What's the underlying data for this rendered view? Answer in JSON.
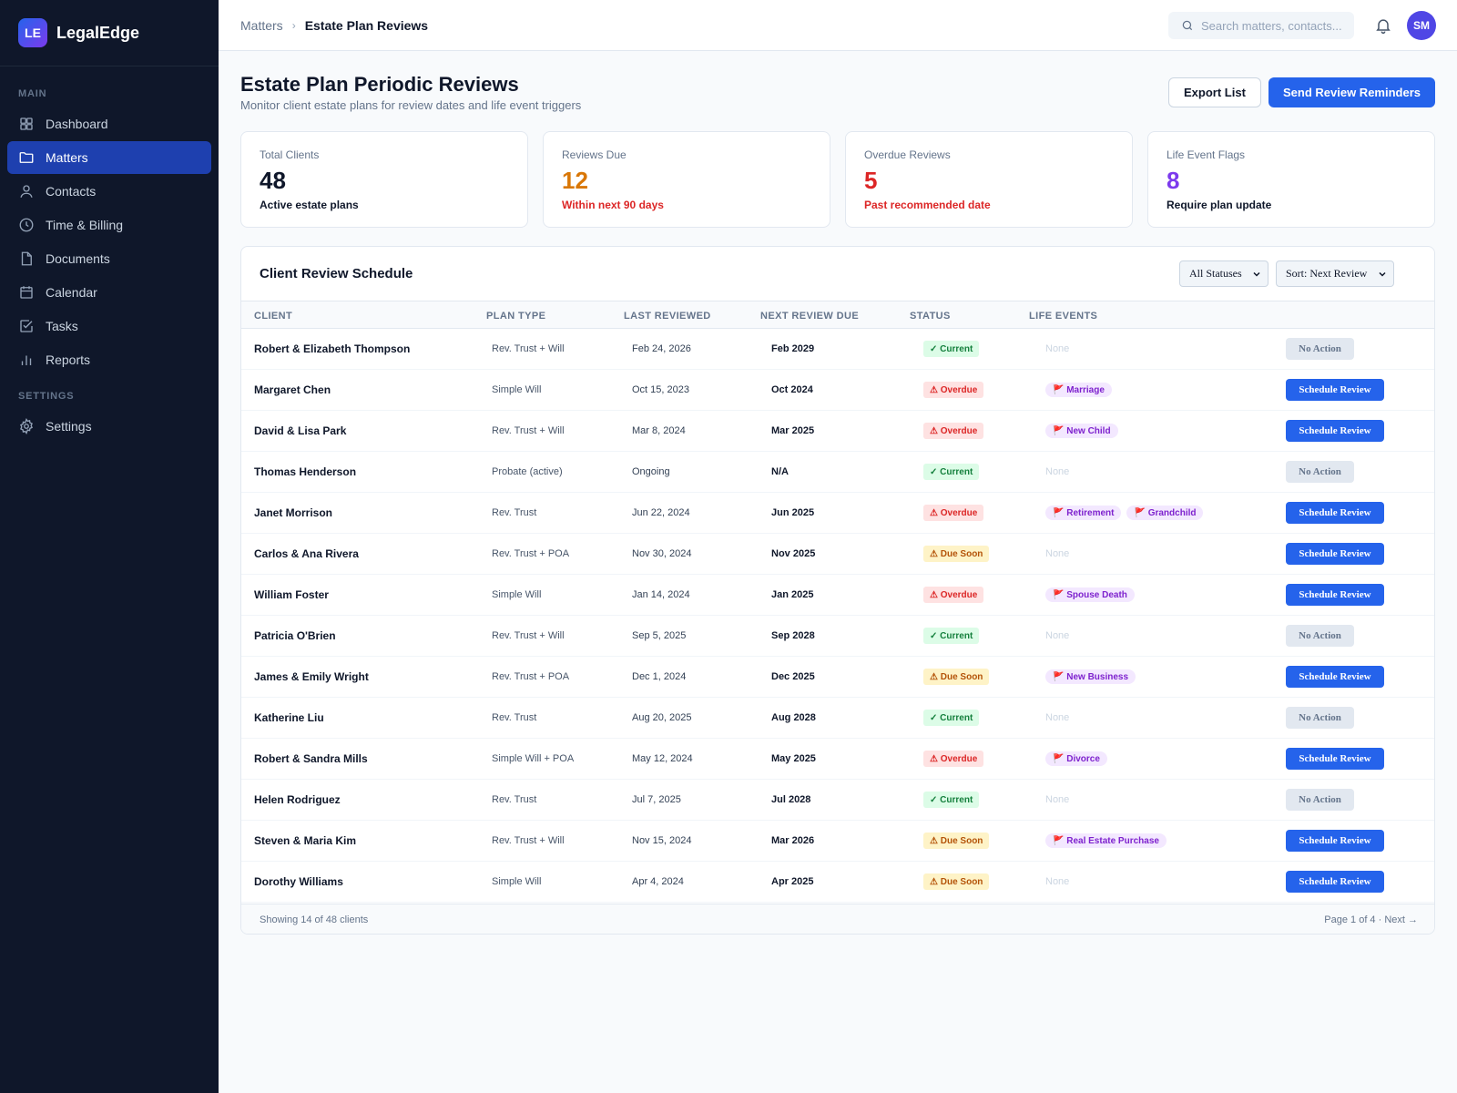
{
  "brand": {
    "logo_text": "LE",
    "name": "LegalEdge"
  },
  "sidebar": {
    "section_main": "MAIN",
    "section_settings": "SETTINGS",
    "items": [
      {
        "label": "Dashboard",
        "icon": "grid-icon"
      },
      {
        "label": "Matters",
        "icon": "folder-icon",
        "active": true
      },
      {
        "label": "Contacts",
        "icon": "user-icon"
      },
      {
        "label": "Time & Billing",
        "icon": "clock-icon"
      },
      {
        "label": "Documents",
        "icon": "document-icon"
      },
      {
        "label": "Calendar",
        "icon": "calendar-icon"
      },
      {
        "label": "Tasks",
        "icon": "checkbox-icon"
      },
      {
        "label": "Reports",
        "icon": "bar-chart-icon"
      }
    ],
    "settings_item": {
      "label": "Settings",
      "icon": "gear-icon"
    }
  },
  "topbar": {
    "breadcrumb": {
      "parent": "Matters",
      "current": "Estate Plan Reviews"
    },
    "search_placeholder": "Search matters, contacts...",
    "avatar_initials": "SM"
  },
  "page": {
    "title": "Estate Plan Periodic Reviews",
    "subtitle": "Monitor client estate plans for review dates and life event triggers",
    "export_label": "Export List",
    "remind_label": "Send Review Reminders"
  },
  "stats": [
    {
      "label": "Total Clients",
      "value": "48",
      "note": "Active estate plans",
      "value_color": "#0f172a",
      "note_color": "#0f172a"
    },
    {
      "label": "Reviews Due",
      "value": "12",
      "note": "Within next 90 days",
      "value_color": "#d97706",
      "note_color": "#dc2626"
    },
    {
      "label": "Overdue Reviews",
      "value": "5",
      "note": "Past recommended date",
      "value_color": "#dc2626",
      "note_color": "#dc2626"
    },
    {
      "label": "Life Event Flags",
      "value": "8",
      "note": "Require plan update",
      "value_color": "#7c3aed",
      "note_color": "#0f172a"
    }
  ],
  "table": {
    "title": "Client Review Schedule",
    "filter_status": "All Statuses",
    "sort": "Sort: Next Review",
    "headers": [
      "CLIENT",
      "PLAN TYPE",
      "LAST REVIEWED",
      "NEXT REVIEW DUE",
      "STATUS",
      "LIFE EVENTS"
    ],
    "rows": [
      {
        "client": "Robert & Elizabeth Thompson",
        "plan": "Rev. Trust + Will",
        "last": "Feb 24, 2026",
        "next": "Feb 2029",
        "status": "✓ Current",
        "status_kind": "current",
        "events": [],
        "action": "No Action",
        "action_kind": "none"
      },
      {
        "client": "Margaret Chen",
        "plan": "Simple Will",
        "last": "Oct 15, 2023",
        "next": "Oct 2024",
        "status": "⚠ Overdue",
        "status_kind": "overdue",
        "events": [
          "🚩 Marriage"
        ],
        "action": "Schedule Review",
        "action_kind": "sched"
      },
      {
        "client": "David & Lisa Park",
        "plan": "Rev. Trust + Will",
        "last": "Mar 8, 2024",
        "next": "Mar 2025",
        "status": "⚠ Overdue",
        "status_kind": "overdue",
        "events": [
          "🚩 New Child"
        ],
        "action": "Schedule Review",
        "action_kind": "sched"
      },
      {
        "client": "Thomas Henderson",
        "plan": "Probate (active)",
        "last": "Ongoing",
        "next": "N/A",
        "status": "✓ Current",
        "status_kind": "current",
        "events": [],
        "action": "No Action",
        "action_kind": "none"
      },
      {
        "client": "Janet Morrison",
        "plan": "Rev. Trust",
        "last": "Jun 22, 2024",
        "next": "Jun 2025",
        "status": "⚠ Overdue",
        "status_kind": "overdue",
        "events": [
          "🚩 Retirement",
          "🚩 Grandchild"
        ],
        "action": "Schedule Review",
        "action_kind": "sched"
      },
      {
        "client": "Carlos & Ana Rivera",
        "plan": "Rev. Trust + POA",
        "last": "Nov 30, 2024",
        "next": "Nov 2025",
        "status": "⚠ Due Soon",
        "status_kind": "due",
        "events": [],
        "action": "Schedule Review",
        "action_kind": "sched"
      },
      {
        "client": "William Foster",
        "plan": "Simple Will",
        "last": "Jan 14, 2024",
        "next": "Jan 2025",
        "status": "⚠ Overdue",
        "status_kind": "overdue",
        "events": [
          "🚩 Spouse Death"
        ],
        "action": "Schedule Review",
        "action_kind": "sched"
      },
      {
        "client": "Patricia O'Brien",
        "plan": "Rev. Trust + Will",
        "last": "Sep 5, 2025",
        "next": "Sep 2028",
        "status": "✓ Current",
        "status_kind": "current",
        "events": [],
        "action": "No Action",
        "action_kind": "none"
      },
      {
        "client": "James & Emily Wright",
        "plan": "Rev. Trust + POA",
        "last": "Dec 1, 2024",
        "next": "Dec 2025",
        "status": "⚠ Due Soon",
        "status_kind": "due",
        "events": [
          "🚩 New Business"
        ],
        "action": "Schedule Review",
        "action_kind": "sched"
      },
      {
        "client": "Katherine Liu",
        "plan": "Rev. Trust",
        "last": "Aug 20, 2025",
        "next": "Aug 2028",
        "status": "✓ Current",
        "status_kind": "current",
        "events": [],
        "action": "No Action",
        "action_kind": "none"
      },
      {
        "client": "Robert & Sandra Mills",
        "plan": "Simple Will + POA",
        "last": "May 12, 2024",
        "next": "May 2025",
        "status": "⚠ Overdue",
        "status_kind": "overdue",
        "events": [
          "🚩 Divorce"
        ],
        "action": "Schedule Review",
        "action_kind": "sched"
      },
      {
        "client": "Helen Rodriguez",
        "plan": "Rev. Trust",
        "last": "Jul 7, 2025",
        "next": "Jul 2028",
        "status": "✓ Current",
        "status_kind": "current",
        "events": [],
        "action": "No Action",
        "action_kind": "none"
      },
      {
        "client": "Steven & Maria Kim",
        "plan": "Rev. Trust + Will",
        "last": "Nov 15, 2024",
        "next": "Mar 2026",
        "status": "⚠ Due Soon",
        "status_kind": "due",
        "events": [
          "🚩 Real Estate Purchase"
        ],
        "action": "Schedule Review",
        "action_kind": "sched"
      },
      {
        "client": "Dorothy Williams",
        "plan": "Simple Will",
        "last": "Apr 4, 2024",
        "next": "Apr 2025",
        "status": "⚠ Due Soon",
        "status_kind": "due",
        "events": [],
        "action": "Schedule Review",
        "action_kind": "sched"
      }
    ],
    "none_text": "None",
    "footer_left": "Showing 14 of 48 clients",
    "footer_right": "Page 1 of 4 · Next →"
  }
}
